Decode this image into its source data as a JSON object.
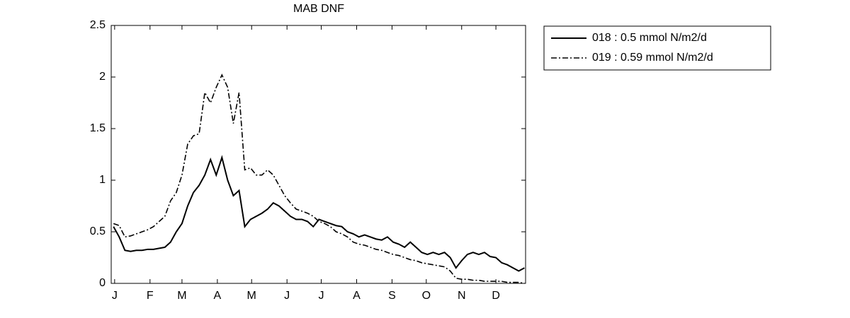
{
  "chart_data": {
    "type": "line",
    "title": "MAB DNF",
    "x": [
      0,
      5,
      10,
      15,
      20,
      25,
      30,
      35,
      40,
      45,
      50,
      55,
      60,
      65,
      70,
      75,
      80,
      85,
      90,
      95,
      100,
      105,
      110,
      115,
      120,
      125,
      130,
      135,
      140,
      145,
      150,
      155,
      160,
      165,
      170,
      175,
      180,
      185,
      190,
      195,
      200,
      205,
      210,
      215,
      220,
      225,
      230,
      235,
      240,
      245,
      250,
      255,
      260,
      265,
      270,
      275,
      280,
      285,
      290,
      295,
      300,
      305,
      310,
      315,
      320,
      325,
      330,
      335,
      340,
      345,
      350,
      355,
      360
    ],
    "series": [
      {
        "name": "018 : 0.5 mmol N/m2/d",
        "color": "#000000",
        "style": "solid",
        "values": [
          0.55,
          0.45,
          0.32,
          0.31,
          0.32,
          0.32,
          0.33,
          0.33,
          0.34,
          0.35,
          0.4,
          0.5,
          0.58,
          0.75,
          0.88,
          0.95,
          1.05,
          1.2,
          1.05,
          1.22,
          1.0,
          0.85,
          0.9,
          0.55,
          0.62,
          0.65,
          0.68,
          0.72,
          0.78,
          0.75,
          0.7,
          0.65,
          0.62,
          0.62,
          0.6,
          0.55,
          0.62,
          0.6,
          0.58,
          0.56,
          0.55,
          0.5,
          0.48,
          0.45,
          0.47,
          0.45,
          0.43,
          0.42,
          0.45,
          0.4,
          0.38,
          0.35,
          0.4,
          0.35,
          0.3,
          0.28,
          0.3,
          0.28,
          0.3,
          0.25,
          0.15,
          0.22,
          0.28,
          0.3,
          0.28,
          0.3,
          0.26,
          0.25,
          0.2,
          0.18,
          0.15,
          0.12,
          0.15
        ]
      },
      {
        "name": "019 : 0.59 mmol N/m2/d",
        "color": "#000000",
        "style": "dashdot",
        "values": [
          0.58,
          0.56,
          0.45,
          0.46,
          0.48,
          0.5,
          0.52,
          0.55,
          0.6,
          0.65,
          0.8,
          0.88,
          1.05,
          1.35,
          1.43,
          1.45,
          1.85,
          1.75,
          1.9,
          2.02,
          1.9,
          1.55,
          1.85,
          1.1,
          1.12,
          1.05,
          1.05,
          1.1,
          1.05,
          0.95,
          0.85,
          0.78,
          0.72,
          0.7,
          0.68,
          0.65,
          0.6,
          0.58,
          0.55,
          0.5,
          0.48,
          0.45,
          0.4,
          0.38,
          0.37,
          0.35,
          0.33,
          0.32,
          0.3,
          0.28,
          0.27,
          0.25,
          0.23,
          0.22,
          0.2,
          0.19,
          0.18,
          0.17,
          0.16,
          0.12,
          0.05,
          0.04,
          0.04,
          0.03,
          0.03,
          0.02,
          0.02,
          0.02,
          0.02,
          0.01,
          0.01,
          0.01,
          0.0
        ]
      }
    ],
    "xlim": [
      -2,
      361
    ],
    "xticks": [
      {
        "value": 1,
        "label": "J"
      },
      {
        "value": 32,
        "label": "F"
      },
      {
        "value": 60,
        "label": "M"
      },
      {
        "value": 91,
        "label": "A"
      },
      {
        "value": 121,
        "label": "M"
      },
      {
        "value": 152,
        "label": "J"
      },
      {
        "value": 182,
        "label": "J"
      },
      {
        "value": 213,
        "label": "A"
      },
      {
        "value": 244,
        "label": "S"
      },
      {
        "value": 274,
        "label": "O"
      },
      {
        "value": 305,
        "label": "N"
      },
      {
        "value": 335,
        "label": "D"
      }
    ],
    "ylim": [
      0,
      2.5
    ],
    "yticks": [
      0,
      0.5,
      1,
      1.5,
      2,
      2.5
    ],
    "grid": false,
    "legend": "outside-right"
  }
}
